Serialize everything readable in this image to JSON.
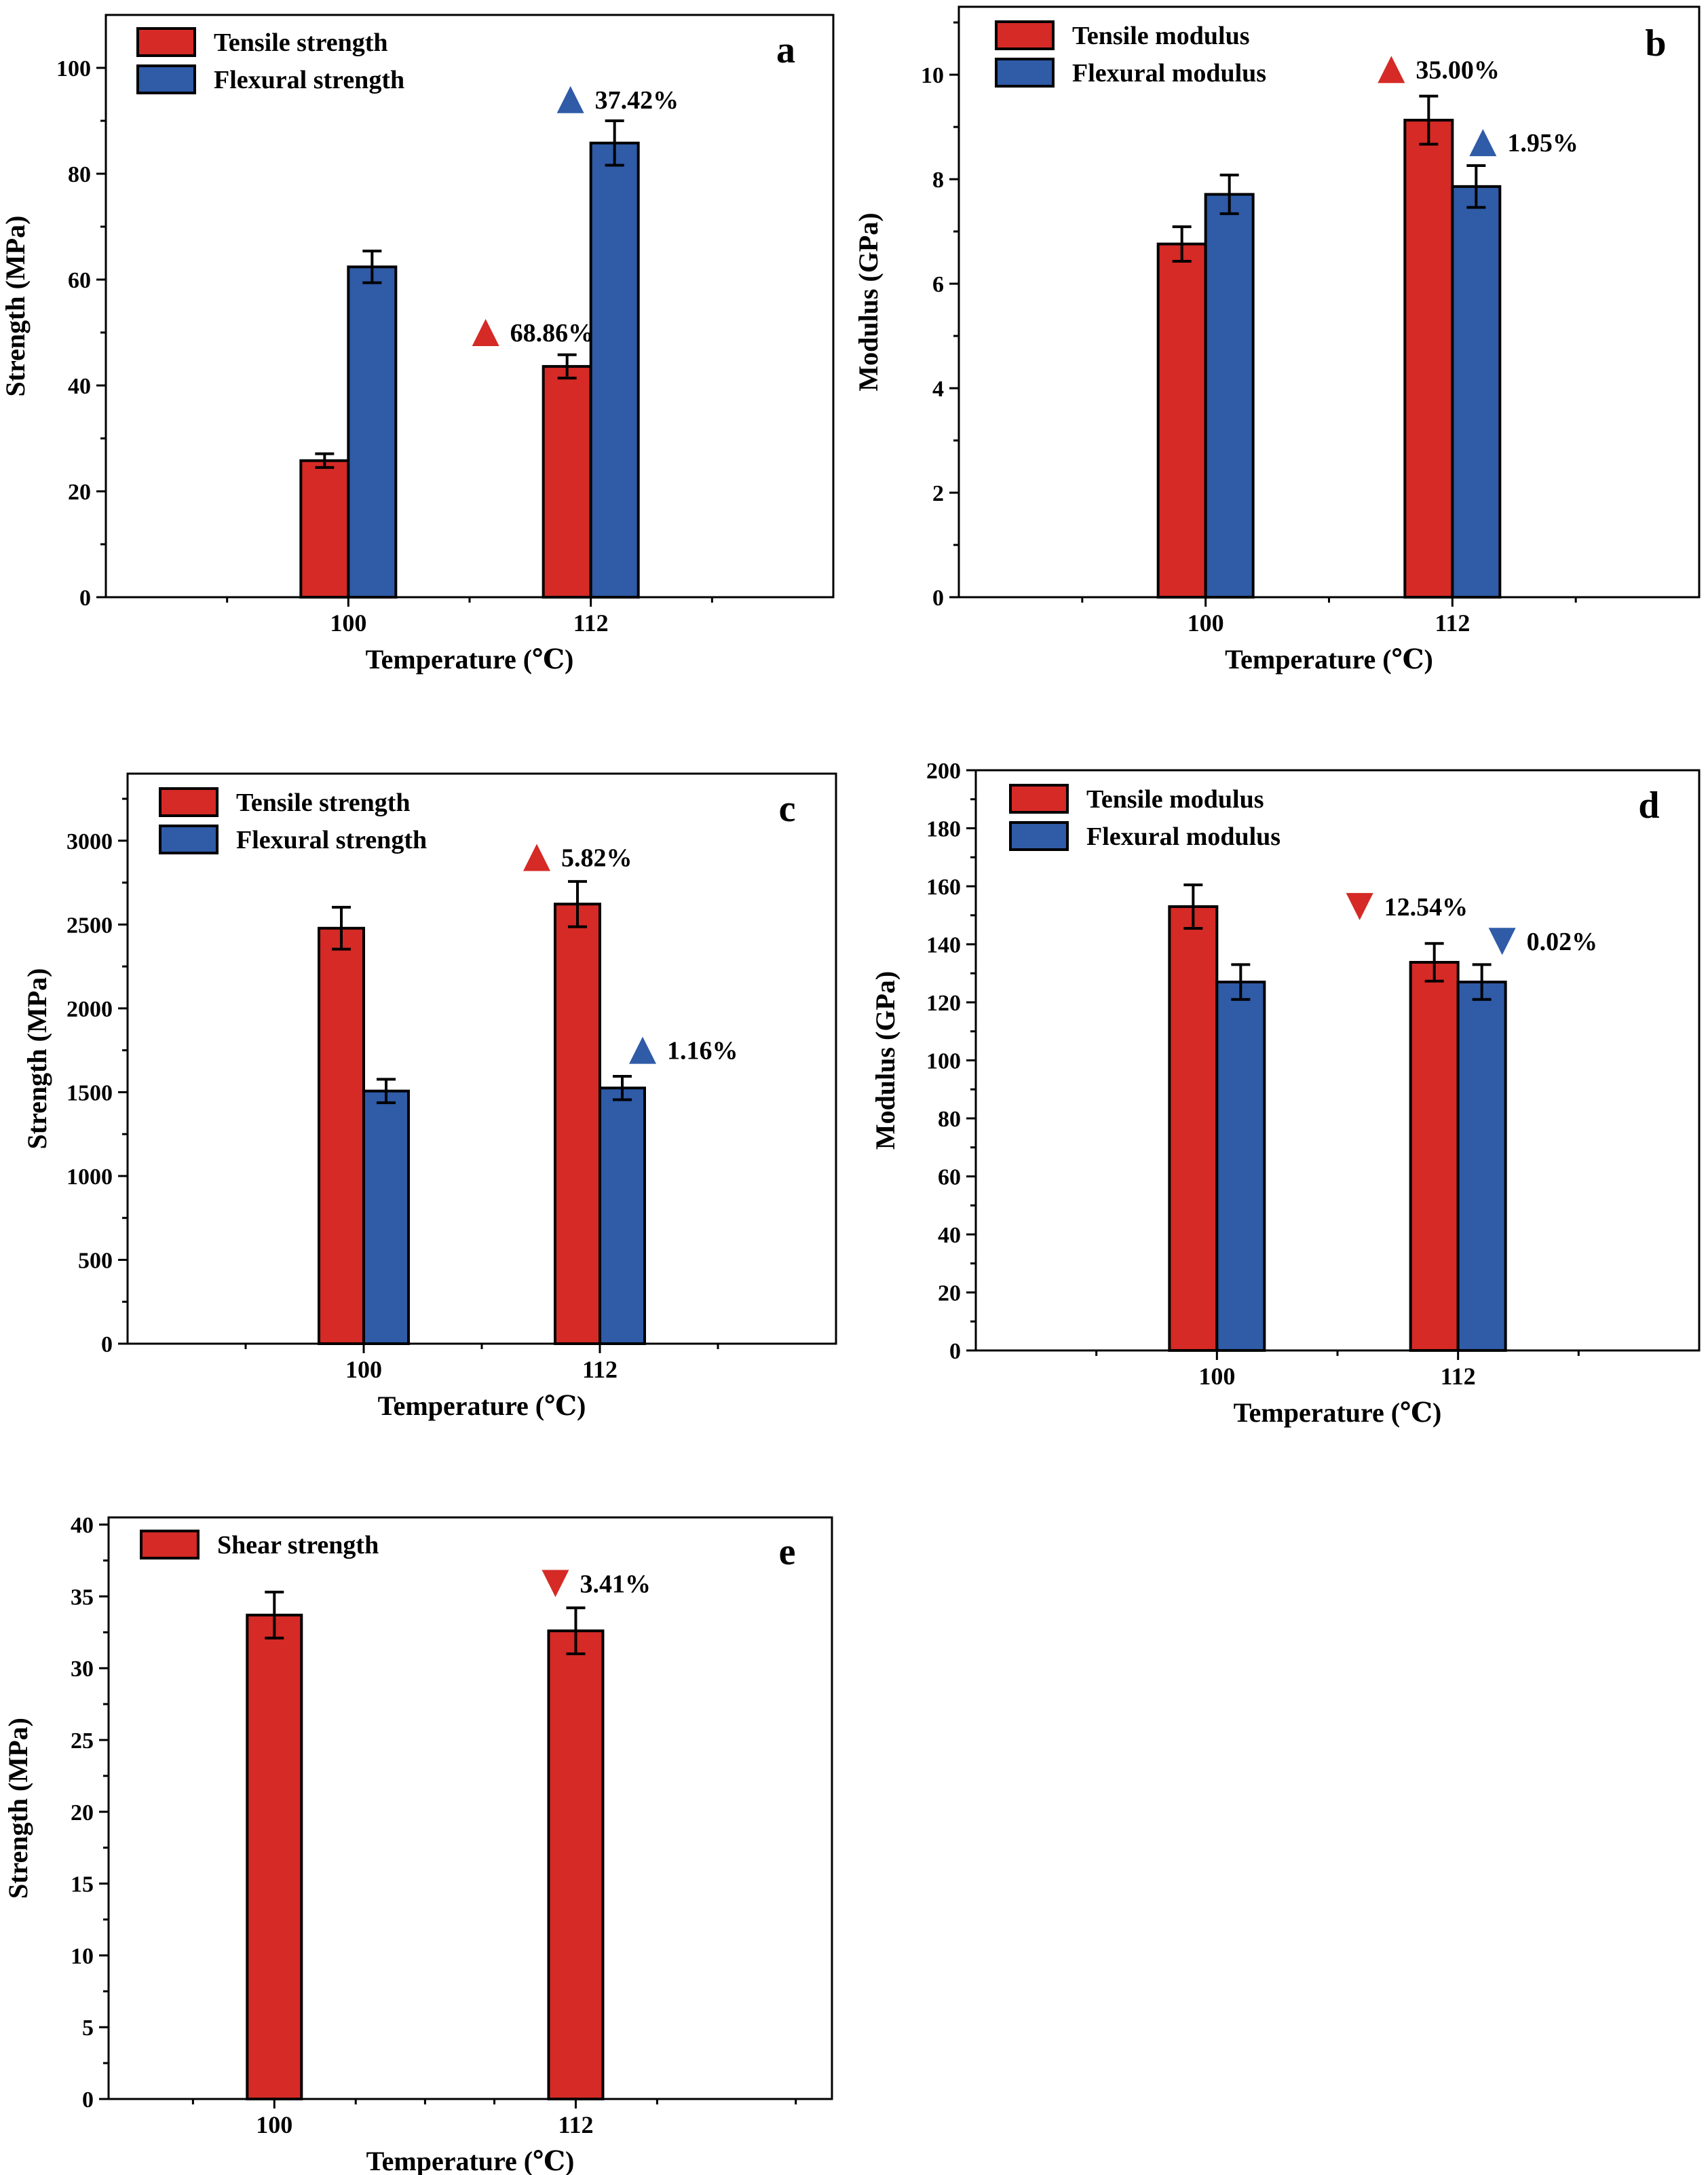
{
  "colors": {
    "tensile": "#d52a26",
    "flexural": "#2f5ba7",
    "axis": "#000000"
  },
  "chart_data": [
    {
      "id": "a",
      "type": "bar",
      "panel_label": "a",
      "xlabel": "Temperature (℃)",
      "ylabel": "Strength (MPa)",
      "categories": [
        "100",
        "112"
      ],
      "ylim": [
        0,
        110
      ],
      "yticks": [
        0,
        20,
        40,
        60,
        80,
        100
      ],
      "minor_step": 10,
      "xrange": [
        0,
        3
      ],
      "series": [
        {
          "name": "Tensile strength",
          "color": "#d52a26",
          "values": [
            25.8,
            43.6
          ],
          "errors": [
            1.3,
            2.2
          ]
        },
        {
          "name": "Flexural strength",
          "color": "#2f5ba7",
          "values": [
            62.4,
            85.8
          ],
          "errors": [
            3.0,
            4.2
          ]
        }
      ],
      "annotations": [
        {
          "text": "68.86%",
          "direction": "up",
          "color": "#d52a26",
          "category": 1,
          "series": 0,
          "y": 50
        },
        {
          "text": "37.42%",
          "direction": "up",
          "color": "#2f5ba7",
          "category": 1,
          "series": 1,
          "y": 94
        }
      ]
    },
    {
      "id": "b",
      "type": "bar",
      "panel_label": "b",
      "xlabel": "Temperature (℃)",
      "ylabel": "Modulus (GPa)",
      "categories": [
        "100",
        "112"
      ],
      "ylim": [
        0,
        11.3
      ],
      "yticks": [
        0,
        2,
        4,
        6,
        8,
        10
      ],
      "minor_step": 1,
      "xrange": [
        0,
        3
      ],
      "series": [
        {
          "name": "Tensile modulus",
          "color": "#d52a26",
          "values": [
            6.76,
            9.13
          ],
          "errors": [
            0.33,
            0.46
          ]
        },
        {
          "name": "Flexural modulus",
          "color": "#2f5ba7",
          "values": [
            7.71,
            7.86
          ],
          "errors": [
            0.37,
            0.4
          ]
        }
      ],
      "annotations": [
        {
          "text": "35.00%",
          "direction": "up",
          "color": "#d52a26",
          "category": 1,
          "series": 0,
          "y": 10.1
        },
        {
          "text": "1.95%",
          "direction": "up",
          "color": "#2f5ba7",
          "category": 1,
          "series": 1,
          "y": 8.7
        }
      ]
    },
    {
      "id": "c",
      "type": "bar",
      "panel_label": "c",
      "xlabel": "Temperature (℃)",
      "ylabel": "Strength (MPa)",
      "categories": [
        "100",
        "112"
      ],
      "ylim": [
        0,
        3400
      ],
      "yticks": [
        0,
        500,
        1000,
        1500,
        2000,
        2500,
        3000
      ],
      "minor_step": 250,
      "xrange": [
        0,
        3
      ],
      "series": [
        {
          "name": "Tensile strength",
          "color": "#d52a26",
          "values": [
            2478,
            2622
          ],
          "errors": [
            125,
            135
          ]
        },
        {
          "name": "Flexural strength",
          "color": "#2f5ba7",
          "values": [
            1507,
            1525
          ],
          "errors": [
            70,
            70
          ]
        }
      ],
      "annotations": [
        {
          "text": "5.82%",
          "direction": "up",
          "color": "#d52a26",
          "category": 1,
          "series": 0,
          "y": 2900
        },
        {
          "text": "1.16%",
          "direction": "up",
          "color": "#2f5ba7",
          "category": 1,
          "series": 1,
          "y": 1750
        }
      ]
    },
    {
      "id": "d",
      "type": "bar",
      "panel_label": "d",
      "xlabel": "Temperature (℃)",
      "ylabel": "Modulus (GPa)",
      "categories": [
        "100",
        "112"
      ],
      "ylim": [
        0,
        200
      ],
      "yticks": [
        0,
        20,
        40,
        60,
        80,
        100,
        120,
        140,
        160,
        180,
        200
      ],
      "minor_step": 10,
      "xrange": [
        0,
        3
      ],
      "series": [
        {
          "name": "Tensile modulus",
          "color": "#d52a26",
          "values": [
            153,
            133.8
          ],
          "errors": [
            7.5,
            6.5
          ]
        },
        {
          "name": "Flexural modulus",
          "color": "#2f5ba7",
          "values": [
            127,
            127
          ],
          "errors": [
            6,
            6
          ]
        }
      ],
      "annotations": [
        {
          "text": "12.54%",
          "direction": "down",
          "color": "#d52a26",
          "category": 1,
          "series": 0,
          "y": 153
        },
        {
          "text": "0.02%",
          "direction": "down",
          "color": "#2f5ba7",
          "category": 1,
          "series": 1,
          "y": 141
        }
      ]
    },
    {
      "id": "e",
      "type": "bar",
      "panel_label": "e",
      "xlabel": "Temperature (℃)",
      "ylabel": "Strength (MPa)",
      "categories": [
        "100",
        "112"
      ],
      "ylim": [
        0,
        40.5
      ],
      "yticks": [
        0,
        5,
        10,
        15,
        20,
        25,
        30,
        35,
        40
      ],
      "minor_step": 2.5,
      "xrange": [
        0,
        2.4
      ],
      "series": [
        {
          "name": "Shear strength",
          "color": "#d52a26",
          "values": [
            33.7,
            32.6
          ],
          "errors": [
            1.6,
            1.6
          ]
        }
      ],
      "annotations": [
        {
          "text": "3.41%",
          "direction": "down",
          "color": "#d52a26",
          "category": 1,
          "series": 0,
          "y": 35.9
        }
      ]
    }
  ]
}
